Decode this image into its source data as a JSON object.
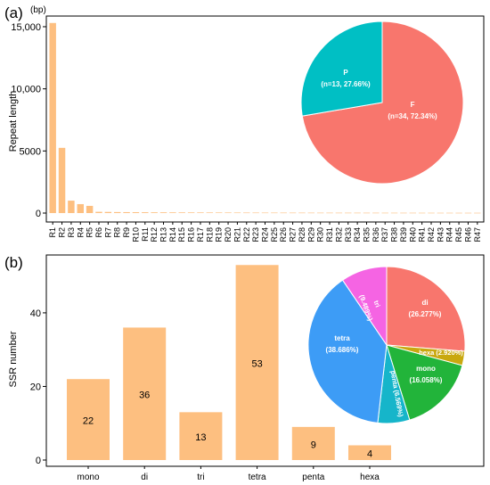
{
  "panels": {
    "a": {
      "label": "(a)",
      "unit": "(bp)"
    },
    "b": {
      "label": "(b)"
    }
  },
  "colors": {
    "bar": "#FDBF80",
    "F": "#F8766D",
    "P": "#00BFC4",
    "di": "#F8766D",
    "hexa": "#C9A80F",
    "mono": "#22B43A",
    "penta": "#16B5CA",
    "tetra": "#3D9CF6",
    "tri": "#F564E3"
  },
  "chart_data": [
    {
      "type": "bar",
      "ylabel": "Repeat length",
      "ylim": [
        0,
        15500
      ],
      "yticks": [
        0,
        5000,
        10000,
        15000
      ],
      "ytick_labels": [
        "0",
        "5000",
        "10,000",
        "15,000"
      ],
      "categories": [
        "R1",
        "R2",
        "R3",
        "R4",
        "R5",
        "R6",
        "R7",
        "R8",
        "R9",
        "R10",
        "R11",
        "R12",
        "R13",
        "R14",
        "R15",
        "R16",
        "R17",
        "R18",
        "R19",
        "R20",
        "R21",
        "R22",
        "R23",
        "R24",
        "R25",
        "R26",
        "R27",
        "R28",
        "R29",
        "R30",
        "R31",
        "R32",
        "R33",
        "R34",
        "R35",
        "R36",
        "R37",
        "R38",
        "R39",
        "R40",
        "R41",
        "R42",
        "R43",
        "R44",
        "R45",
        "R46",
        "R47"
      ],
      "values": [
        15300,
        5250,
        1000,
        720,
        580,
        100,
        90,
        80,
        75,
        70,
        65,
        60,
        58,
        55,
        52,
        50,
        48,
        46,
        44,
        42,
        40,
        38,
        37,
        36,
        35,
        34,
        33,
        32,
        31,
        30,
        30,
        29,
        28,
        28,
        27,
        27,
        26,
        26,
        25,
        25,
        24,
        24,
        23,
        23,
        22,
        22,
        22
      ],
      "grid": false
    },
    {
      "type": "pie",
      "slices": [
        {
          "name": "F",
          "label": "(n=34, 72.34%)",
          "value": 72.34,
          "color_key": "F"
        },
        {
          "name": "P",
          "label": "(n=13, 27.66%)",
          "value": 27.66,
          "color_key": "P"
        }
      ]
    },
    {
      "type": "bar",
      "ylabel": "SSR number",
      "ylim": [
        0,
        55
      ],
      "yticks": [
        0,
        20,
        40
      ],
      "categories": [
        "mono",
        "di",
        "tri",
        "tetra",
        "penta",
        "hexa"
      ],
      "values": [
        22,
        36,
        13,
        53,
        9,
        4
      ],
      "grid": false
    },
    {
      "type": "pie",
      "slices": [
        {
          "name": "di",
          "label": "(26.277%)",
          "value": 26.277,
          "color_key": "di"
        },
        {
          "name": "hexa",
          "label": "(2.920%)",
          "value": 2.92,
          "color_key": "hexa"
        },
        {
          "name": "mono",
          "label": "(16.058%)",
          "value": 16.058,
          "color_key": "mono"
        },
        {
          "name": "penta",
          "label": "(6.569%)",
          "value": 6.569,
          "color_key": "penta"
        },
        {
          "name": "tetra",
          "label": "(38.686%)",
          "value": 38.686,
          "color_key": "tetra"
        },
        {
          "name": "tri",
          "label": "(9.489%)",
          "value": 9.489,
          "color_key": "tri"
        }
      ]
    }
  ]
}
